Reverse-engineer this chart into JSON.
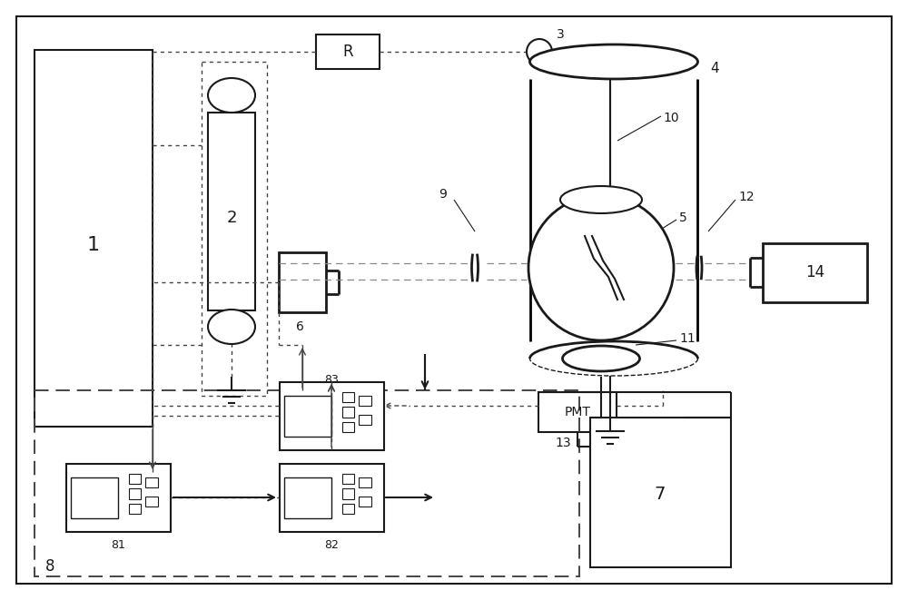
{
  "bg_color": "#ffffff",
  "line_color": "#1a1a1a",
  "fig_width": 10.0,
  "fig_height": 6.61,
  "lw_main": 1.5,
  "lw_thin": 1.0,
  "lw_thick": 2.0,
  "dot_color": "#444444",
  "dash_color": "#888888"
}
